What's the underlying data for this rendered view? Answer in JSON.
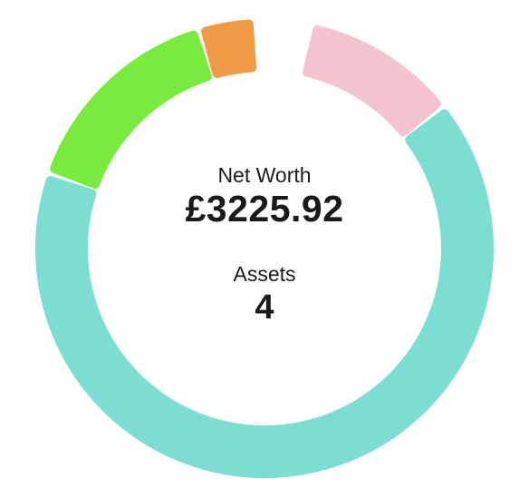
{
  "summary": {
    "net_worth_label": "Net Worth",
    "net_worth_value": "£3225.92",
    "assets_label": "Assets",
    "assets_value": "4"
  },
  "ring": {
    "segments": [
      {
        "color": "#f3c3cf",
        "share": 0.11
      },
      {
        "color": "#7cddd1",
        "share": 0.66
      },
      {
        "color": "#79ea3e",
        "share": 0.15
      },
      {
        "color": "#ef9a45",
        "share": 0.04
      }
    ]
  }
}
